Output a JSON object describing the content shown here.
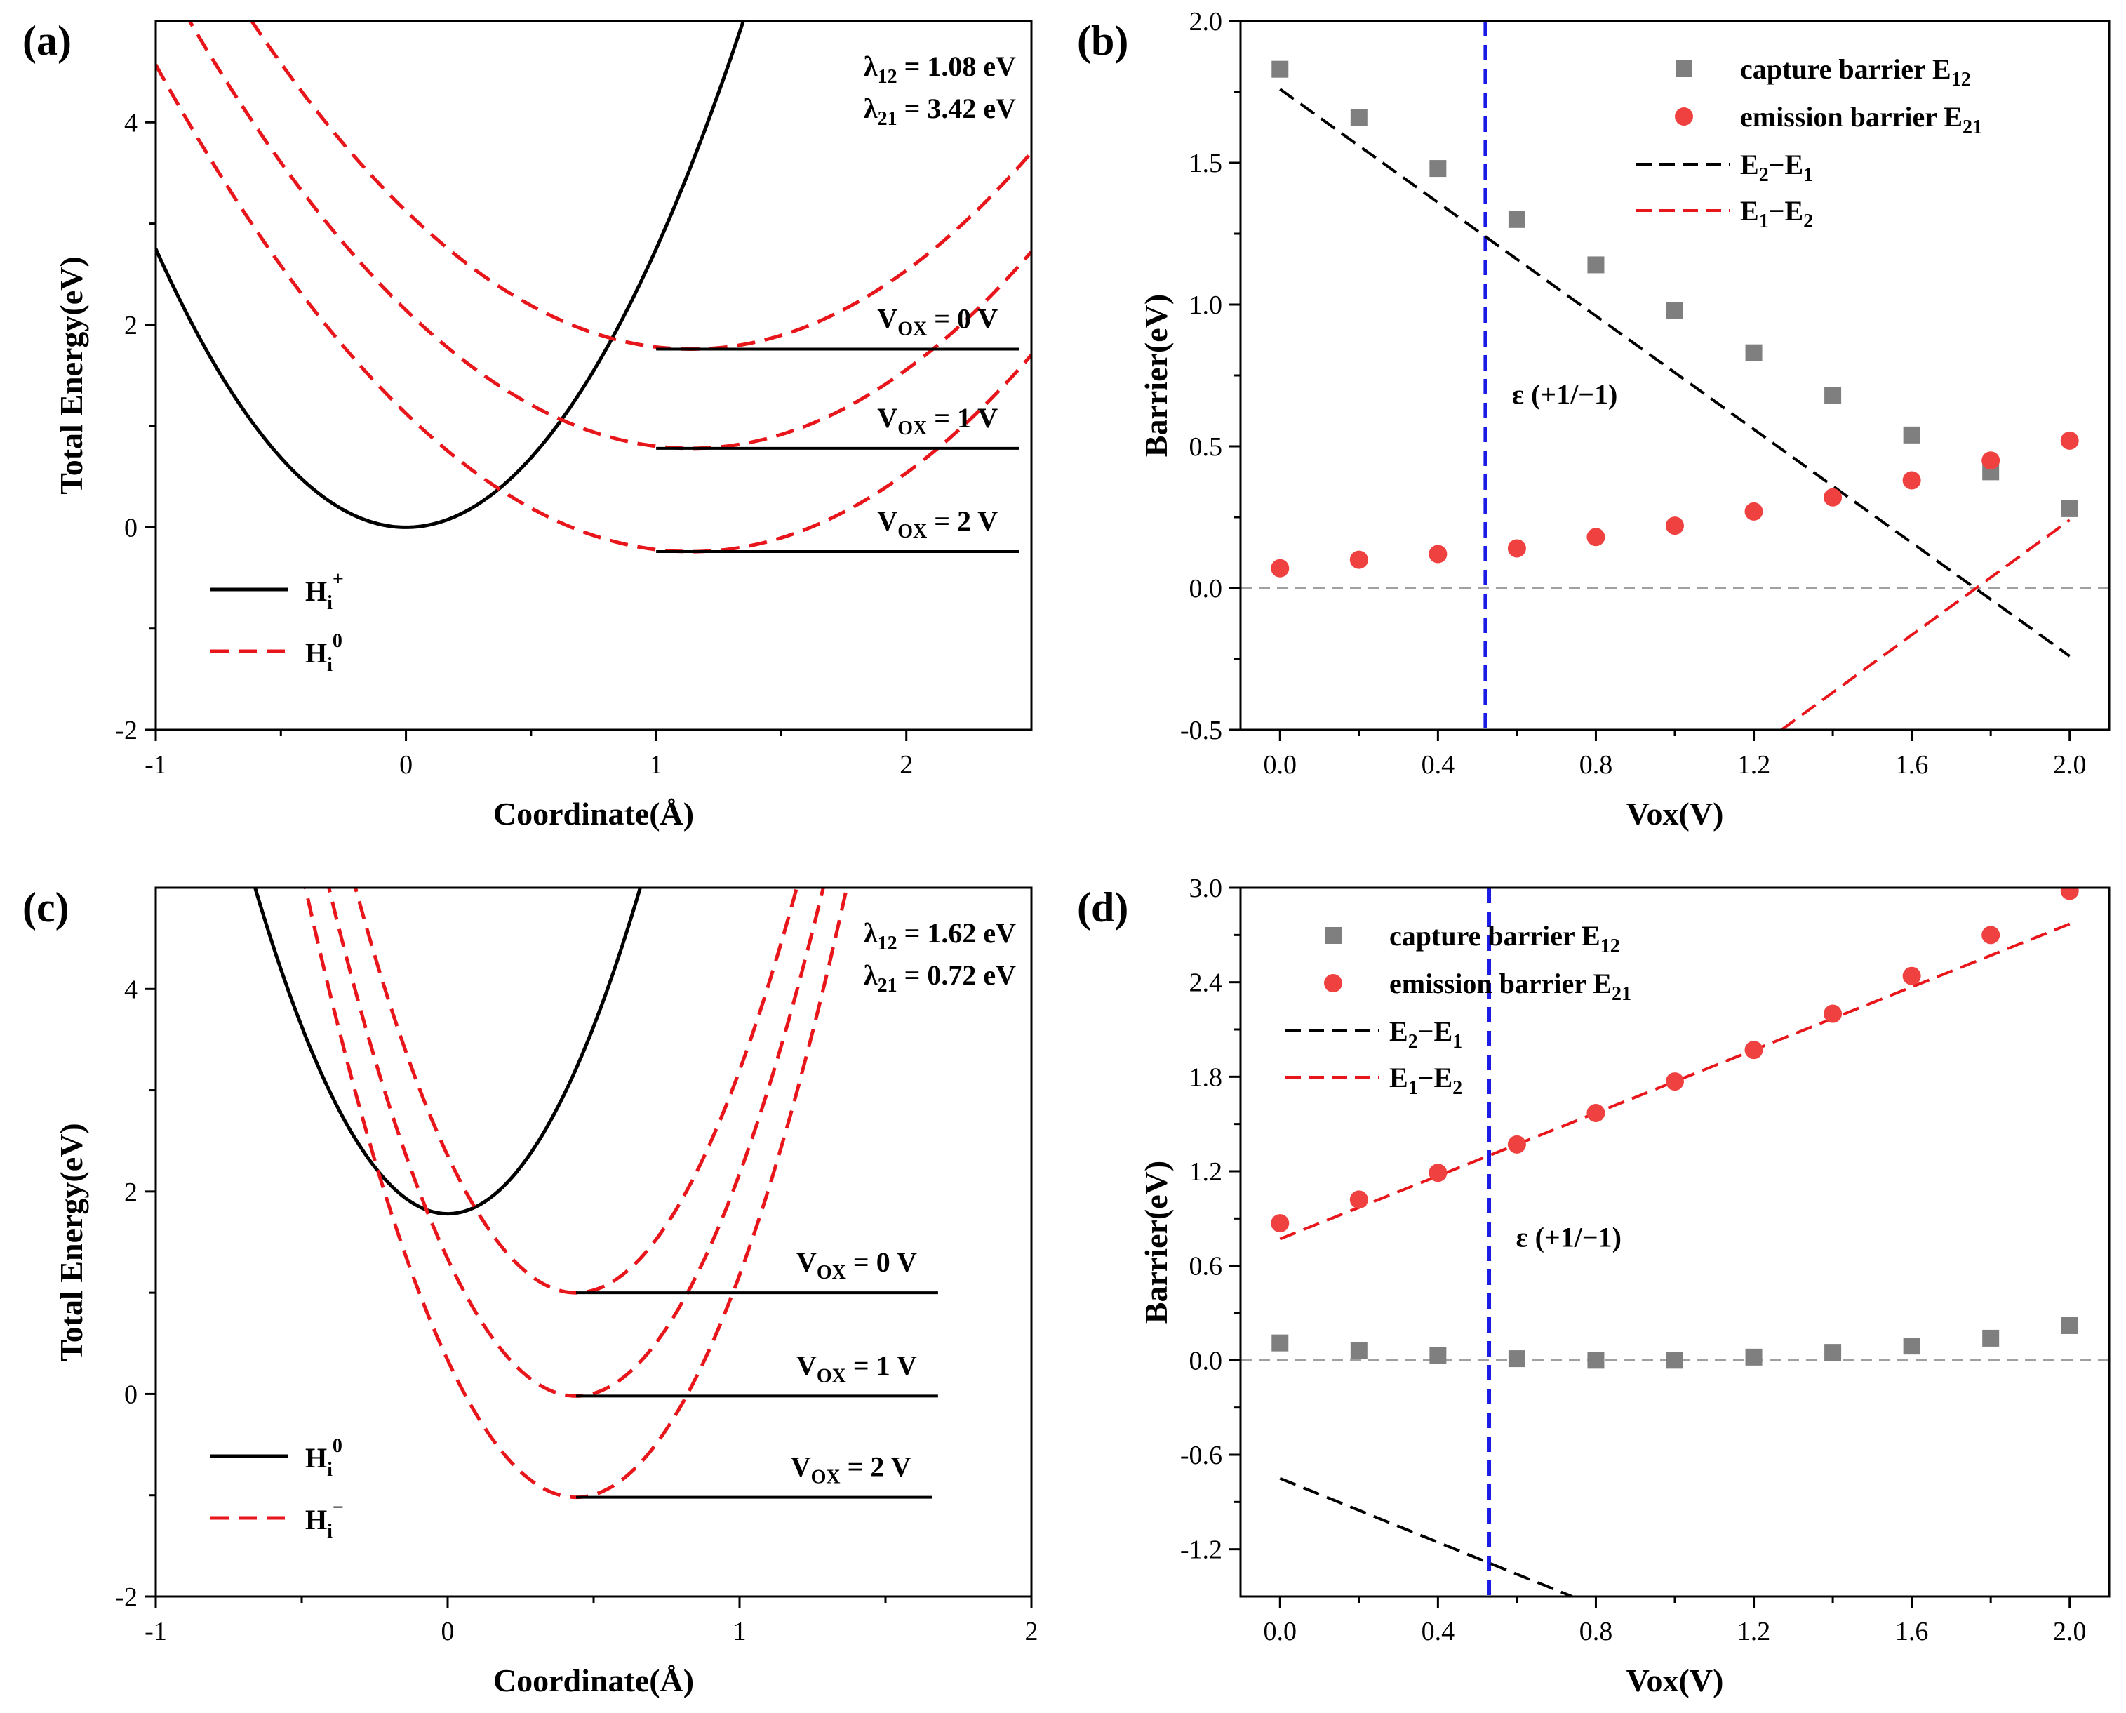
{
  "colors": {
    "black": "#000000",
    "red": "#e8161b",
    "red_marker": "#f04141",
    "gray_marker": "#7f7f7f",
    "blue": "#1b1be6",
    "zero_line": "#a0a0a0"
  },
  "chart_data": [
    {
      "id": "a",
      "panel_label": "(a)",
      "type": "line",
      "xlabel": "Coordinate(Å)",
      "ylabel": "Total Energy(eV)",
      "xlim": [
        -1,
        2.5
      ],
      "ylim": [
        -2,
        5
      ],
      "xticks": [
        -1,
        0,
        1,
        2
      ],
      "yticks": [
        -2,
        0,
        2,
        4
      ],
      "lambda_lines": [
        {
          "sym": "λ",
          "sub": "12",
          "text": " = 1.08 eV"
        },
        {
          "sym": "λ",
          "sub": "21",
          "text": " = 3.42 eV"
        }
      ],
      "series": [
        {
          "name": "H_i^+",
          "legend_main": "H",
          "legend_sub": "i",
          "legend_sup": "+",
          "style": "solid",
          "center": 0,
          "min": 0,
          "k": 2.75,
          "xrange": [
            -1,
            1.36
          ]
        },
        {
          "name": "H_i^0",
          "legend_main": "H",
          "legend_sub": "i",
          "legend_sup": "0",
          "style": "dashed",
          "curves": [
            {
              "center": 1.14,
              "min": 1.76,
              "k": 1.05,
              "xrange": [
                -0.8,
                2.5
              ]
            },
            {
              "center": 1.14,
              "min": 0.78,
              "k": 1.05,
              "xrange": [
                -1,
                2.5
              ]
            },
            {
              "center": 1.14,
              "min": -0.24,
              "k": 1.05,
              "xrange": [
                -1,
                2.5
              ]
            }
          ]
        }
      ],
      "levels": [
        {
          "y": 1.76,
          "x": [
            1.0,
            2.45
          ],
          "label_main": "V",
          "label_sub": "OX",
          "label_rest": " = 0 V"
        },
        {
          "y": 0.78,
          "x": [
            1.0,
            2.45
          ],
          "label_main": "V",
          "label_sub": "OX",
          "label_rest": " = 1 V"
        },
        {
          "y": -0.24,
          "x": [
            1.0,
            2.45
          ],
          "label_main": "V",
          "label_sub": "OX",
          "label_rest": " = 2 V"
        }
      ]
    },
    {
      "id": "b",
      "panel_label": "(b)",
      "type": "scatter",
      "xlabel": "Vox(V)",
      "ylabel": "Barrier(eV)",
      "xlim": [
        -0.1,
        2.1
      ],
      "ylim": [
        -0.5,
        2.0
      ],
      "xticks": [
        "0.0",
        "0.4",
        "0.8",
        "1.2",
        "1.6",
        "2.0"
      ],
      "yticks": [
        "-0.5",
        "0.0",
        "0.5",
        "1.0",
        "1.5",
        "2.0"
      ],
      "x": [
        0.0,
        0.2,
        0.4,
        0.6,
        0.8,
        1.0,
        1.2,
        1.4,
        1.6,
        1.8,
        2.0
      ],
      "series": [
        {
          "name": "capture barrier E12",
          "legend_text": "capture barrier E",
          "legend_sub": "12",
          "marker": "square",
          "values": [
            1.83,
            1.66,
            1.48,
            1.3,
            1.14,
            0.98,
            0.83,
            0.68,
            0.54,
            0.41,
            0.28
          ]
        },
        {
          "name": "emission barrier E21",
          "legend_text": "emission barrier E",
          "legend_sub": "21",
          "marker": "circle",
          "values": [
            0.07,
            0.1,
            0.12,
            0.14,
            0.18,
            0.22,
            0.27,
            0.32,
            0.38,
            0.45,
            0.52
          ]
        },
        {
          "name": "E2−E1",
          "legend_a": "E",
          "legend_sa": "2",
          "legend_b": "−E",
          "legend_sb": "1",
          "line": "dashed",
          "from": [
            0.0,
            1.76
          ],
          "to": [
            2.0,
            -0.24
          ]
        },
        {
          "name": "E1−E2",
          "legend_a": "E",
          "legend_sa": "1",
          "legend_b": "−E",
          "legend_sb": "2",
          "line": "dashed",
          "from": [
            1.27,
            -0.5
          ],
          "to": [
            2.0,
            0.24
          ]
        }
      ],
      "vline": {
        "x": 0.52,
        "label": "ε (+1/−1)",
        "label_y": 0.65
      },
      "hline": 0.0
    },
    {
      "id": "c",
      "panel_label": "(c)",
      "type": "line",
      "xlabel": "Coordinate(Å)",
      "ylabel": "Total Energy(eV)",
      "xlim": [
        -1,
        2
      ],
      "ylim": [
        -2,
        5
      ],
      "xticks": [
        -1,
        0,
        1,
        2
      ],
      "yticks": [
        -2,
        0,
        2,
        4
      ],
      "lambda_lines": [
        {
          "sym": "λ",
          "sub": "12",
          "text": " = 1.62 eV"
        },
        {
          "sym": "λ",
          "sub": "21",
          "text": " = 0.72 eV"
        }
      ],
      "series": [
        {
          "name": "H_i^0",
          "legend_main": "H",
          "legend_sub": "i",
          "legend_sup": "0",
          "style": "solid",
          "center": 0,
          "min": 1.78,
          "k": 7.4,
          "xrange": [
            -0.67,
            0.67
          ]
        },
        {
          "name": "H_i^−",
          "legend_main": "H",
          "legend_sub": "i",
          "legend_sup": "−",
          "style": "dashed",
          "curves": [
            {
              "center": 0.44,
              "min": 1.0,
              "k": 7.0,
              "xrange": [
                -0.4,
                1.25
              ]
            },
            {
              "center": 0.44,
              "min": -0.02,
              "k": 7.0,
              "xrange": [
                -0.44,
                1.32
              ]
            },
            {
              "center": 0.44,
              "min": -1.02,
              "k": 7.0,
              "xrange": [
                -0.5,
                1.38
              ]
            }
          ]
        }
      ],
      "levels": [
        {
          "y": 1.0,
          "x": [
            0.44,
            1.68
          ],
          "label_main": "V",
          "label_sub": "OX",
          "label_rest": " = 0 V"
        },
        {
          "y": -0.02,
          "x": [
            0.44,
            1.68
          ],
          "label_main": "V",
          "label_sub": "OX",
          "label_rest": " = 1 V"
        },
        {
          "y": -1.02,
          "x": [
            0.44,
            1.66
          ],
          "label_main": "V",
          "label_sub": "OX",
          "label_rest": " = 2 V"
        }
      ]
    },
    {
      "id": "d",
      "panel_label": "(d)",
      "type": "scatter",
      "xlabel": "Vox(V)",
      "ylabel": "Barrier(eV)",
      "xlim": [
        -0.1,
        2.1
      ],
      "ylim": [
        -1.5,
        3.0
      ],
      "xticks": [
        "0.0",
        "0.4",
        "0.8",
        "1.2",
        "1.6",
        "2.0"
      ],
      "yticks": [
        "-1.2",
        "-0.6",
        "0.0",
        "0.6",
        "1.2",
        "1.8",
        "2.4",
        "3.0"
      ],
      "x": [
        0.0,
        0.2,
        0.4,
        0.6,
        0.8,
        1.0,
        1.2,
        1.4,
        1.6,
        1.8,
        2.0
      ],
      "series": [
        {
          "name": "capture barrier E12",
          "legend_text": "capture barrier E",
          "legend_sub": "12",
          "marker": "square",
          "values": [
            0.11,
            0.06,
            0.03,
            0.01,
            0.0,
            0.0,
            0.02,
            0.05,
            0.09,
            0.14,
            0.22
          ]
        },
        {
          "name": "emission barrier E21",
          "legend_text": "emission barrier E",
          "legend_sub": "21",
          "marker": "circle",
          "values": [
            0.87,
            1.02,
            1.19,
            1.37,
            1.57,
            1.77,
            1.97,
            2.2,
            2.44,
            2.7,
            2.98
          ]
        },
        {
          "name": "E2−E1",
          "legend_a": "E",
          "legend_sa": "2",
          "legend_b": "−E",
          "legend_sb": "1",
          "line": "dashed",
          "from": [
            0.0,
            -0.75
          ],
          "to": [
            0.74,
            -1.5
          ]
        },
        {
          "name": "E1−E2",
          "legend_a": "E",
          "legend_sa": "1",
          "legend_b": "−E",
          "legend_sb": "2",
          "line": "dashed",
          "from": [
            0.0,
            0.77
          ],
          "to": [
            2.0,
            2.77
          ]
        }
      ],
      "vline": {
        "x": 0.53,
        "label": "ε (+1/−1)",
        "label_y": 0.72
      },
      "hline": 0.0
    }
  ]
}
